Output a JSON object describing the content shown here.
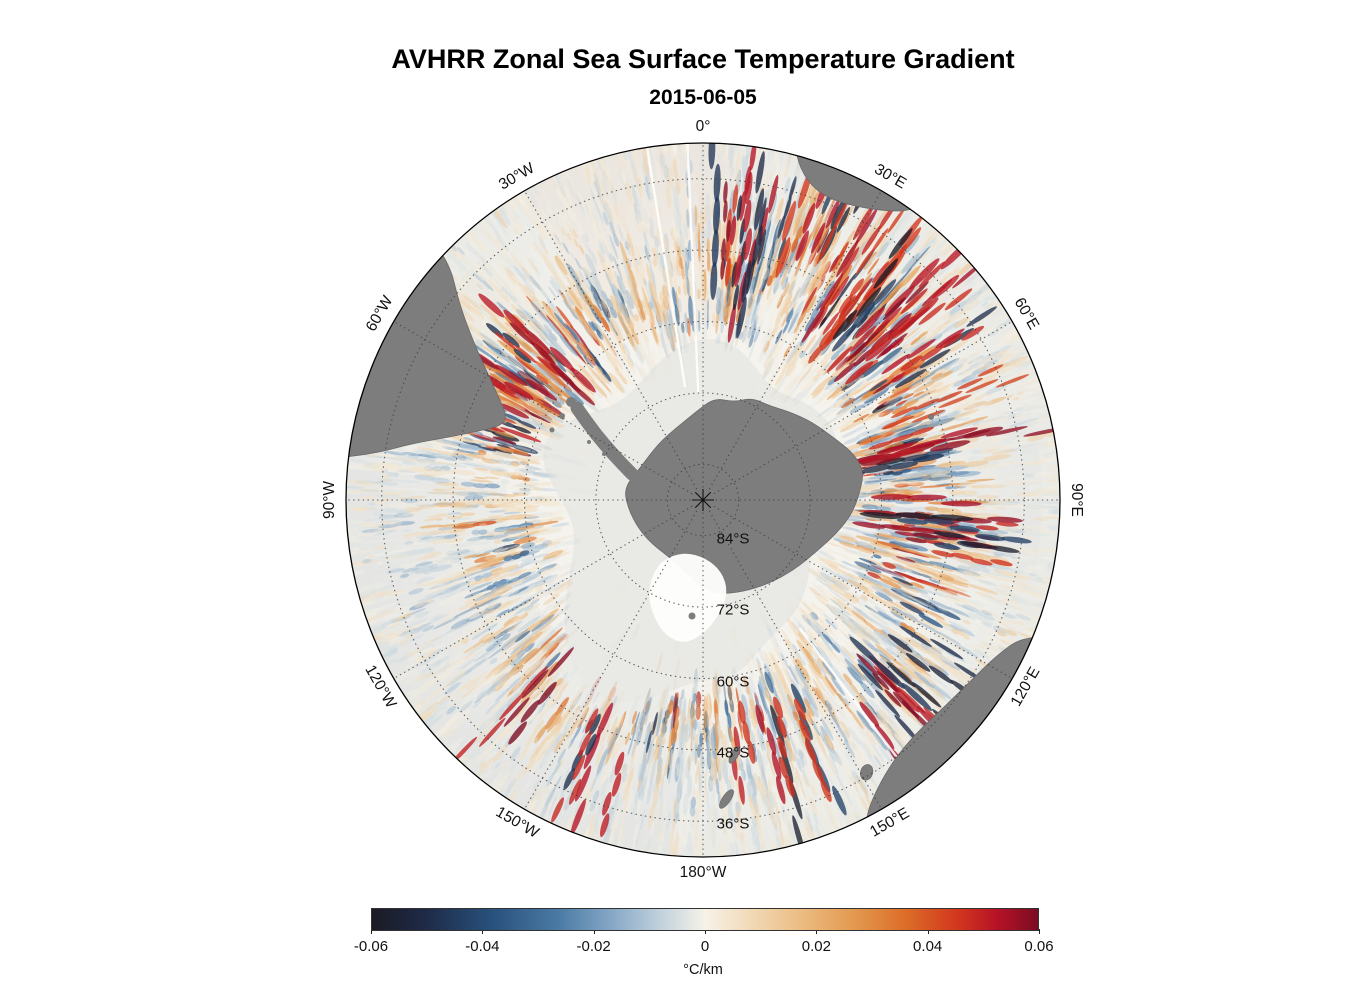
{
  "title": "AVHRR Zonal Sea Surface Temperature Gradient",
  "subtitle": "2015-06-05",
  "chart_data": {
    "type": "heatmap",
    "title": "AVHRR Zonal Sea Surface Temperature Gradient",
    "date": "2015-06-05",
    "projection": "south-polar-stereographic",
    "variable": "zonal sea surface temperature gradient",
    "units": "°C/km",
    "value_range": [
      -0.06,
      0.06
    ],
    "map_extent_lat": [
      -90,
      -30
    ],
    "grid_style": "dotted",
    "meridian_step_deg": 30,
    "colorbar": {
      "orientation": "horizontal",
      "min": -0.06,
      "max": 0.06,
      "ticks": [
        -0.06,
        -0.04,
        -0.02,
        0,
        0.02,
        0.04,
        0.06
      ],
      "tick_labels": [
        "-0.06",
        "-0.04",
        "-0.02",
        "0",
        "0.02",
        "0.04",
        "0.06"
      ],
      "label": "°C/km",
      "stops": [
        {
          "pos": 0.0,
          "color": "#1b1b24"
        },
        {
          "pos": 0.08,
          "color": "#1e2a47"
        },
        {
          "pos": 0.18,
          "color": "#28517c"
        },
        {
          "pos": 0.28,
          "color": "#4a7aa5"
        },
        {
          "pos": 0.36,
          "color": "#86a8c6"
        },
        {
          "pos": 0.44,
          "color": "#c6d5de"
        },
        {
          "pos": 0.5,
          "color": "#f6f2e8"
        },
        {
          "pos": 0.56,
          "color": "#f2ddbd"
        },
        {
          "pos": 0.64,
          "color": "#ecbe85"
        },
        {
          "pos": 0.72,
          "color": "#e39b51"
        },
        {
          "pos": 0.8,
          "color": "#dc6e28"
        },
        {
          "pos": 0.88,
          "color": "#d2361d"
        },
        {
          "pos": 0.94,
          "color": "#b51226"
        },
        {
          "pos": 1.0,
          "color": "#7a0c23"
        }
      ]
    },
    "meridian_labels": [
      {
        "label": "0°",
        "az": 0
      },
      {
        "label": "30°E",
        "az": 30
      },
      {
        "label": "60°E",
        "az": 60
      },
      {
        "label": "90°E",
        "az": 90
      },
      {
        "label": "120°E",
        "az": 120
      },
      {
        "label": "150°E",
        "az": 150
      },
      {
        "label": "180°W",
        "az": 180
      },
      {
        "label": "150°W",
        "az": 210
      },
      {
        "label": "120°W",
        "az": 240
      },
      {
        "label": "90°W",
        "az": 270
      },
      {
        "label": "60°W",
        "az": 300
      },
      {
        "label": "30°W",
        "az": 330
      }
    ],
    "latitude_ring_labels": [
      {
        "label": "84°S",
        "lat": -84
      },
      {
        "label": "72°S",
        "lat": -72
      },
      {
        "label": "60°S",
        "lat": -60
      },
      {
        "label": "48°S",
        "lat": -48
      },
      {
        "label": "36°S",
        "lat": -36
      }
    ],
    "colors": {
      "land": "#7d7d7d",
      "land_edge": "#696969",
      "ice_interior": "#e9e9e5",
      "ocean_base": "#f5f3ee",
      "background": "#ffffff"
    },
    "land_masses": [
      "Antarctica",
      "Antarctic Peninsula",
      "South America",
      "Africa",
      "Australia",
      "Tasmania",
      "New Zealand"
    ]
  }
}
